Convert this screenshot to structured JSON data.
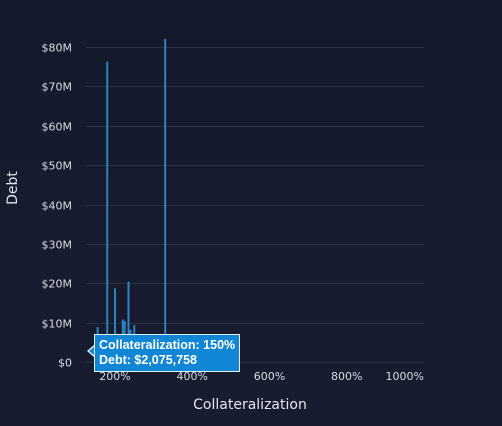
{
  "chart_data": {
    "type": "bar",
    "xlabel": "Collateralization",
    "ylabel": "Debt",
    "xlim": [
      125,
      1000
    ],
    "ylim": [
      0,
      80000000
    ],
    "x_ticks": [
      {
        "value": 200,
        "label": "200%"
      },
      {
        "value": 400,
        "label": "400%"
      },
      {
        "value": 600,
        "label": "600%"
      },
      {
        "value": 800,
        "label": "800%"
      },
      {
        "value": 1000,
        "label": "1000%"
      }
    ],
    "y_ticks": [
      {
        "value": 0,
        "label": "$0"
      },
      {
        "value": 10000000,
        "label": "$10M"
      },
      {
        "value": 20000000,
        "label": "$20M"
      },
      {
        "value": 30000000,
        "label": "$30M"
      },
      {
        "value": 40000000,
        "label": "$40M"
      },
      {
        "value": 50000000,
        "label": "$50M"
      },
      {
        "value": 60000000,
        "label": "$60M"
      },
      {
        "value": 70000000,
        "label": "$70M"
      },
      {
        "value": 80000000,
        "label": "$80M"
      }
    ],
    "grid": true,
    "legend": "none",
    "bar_color": "#1f7ac0",
    "bar_width_units": 3,
    "series": [
      {
        "x": [
          150,
          155,
          160,
          165,
          170,
          180,
          185,
          190,
          200,
          205,
          210,
          220,
          225,
          230,
          235,
          240,
          245,
          250,
          260,
          270,
          280,
          290,
          300,
          310,
          320,
          330,
          340,
          350,
          375,
          400,
          450
        ],
        "values": [
          2075758,
          8800000,
          6500000,
          1300000,
          2000000,
          76200000,
          3200000,
          1100000,
          18600000,
          7000000,
          2500000,
          10700000,
          10300000,
          3000000,
          20300000,
          8100000,
          1700000,
          9300000,
          700000,
          500000,
          600000,
          300000,
          700000,
          400000,
          600000,
          82000000,
          500000,
          400000,
          300000,
          200000,
          100000
        ]
      }
    ]
  },
  "tooltip": {
    "line1": "Collateralization: 150%",
    "line2": "Debt: $2,075,758"
  }
}
